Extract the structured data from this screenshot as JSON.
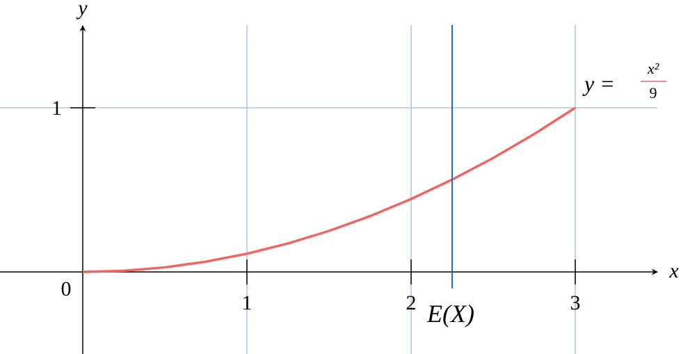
{
  "chart_data": {
    "type": "line",
    "x_label": "x",
    "y_label": "y",
    "xlim": [
      -0.504,
      3.5
    ],
    "ylim": [
      -0.5,
      1.5
    ],
    "xticks": [
      1,
      2,
      3
    ],
    "yticks": [
      1
    ],
    "origin_label": "0",
    "grid": true,
    "grid_color": "#a9c8e0",
    "series": [
      {
        "color": "#f06464",
        "x": [
          0,
          0.25,
          0.5,
          0.75,
          1,
          1.25,
          1.5,
          1.75,
          2,
          2.25,
          2.5,
          2.75,
          3
        ],
        "values": [
          0,
          0.00694,
          0.02778,
          0.0625,
          0.1111,
          0.1736,
          0.25,
          0.3403,
          0.4444,
          0.5625,
          0.6944,
          0.8403,
          1
        ]
      }
    ],
    "curve_label": {
      "lhs": "y =",
      "numerator": "x²",
      "denominator": "9"
    },
    "vline": {
      "x": 2.25,
      "label": "E(X)",
      "color": "#1a6fb5"
    }
  }
}
